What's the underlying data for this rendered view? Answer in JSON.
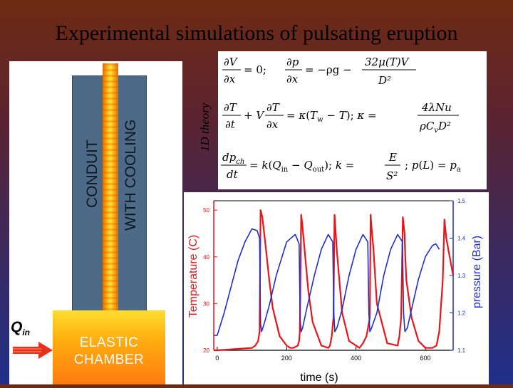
{
  "title": "Experimental simulations of pulsating eruption",
  "diagram": {
    "conduit_label_1": "CONDUIT",
    "conduit_label_2": "WITH COOLING",
    "chamber_label_1": "ELASTIC",
    "chamber_label_2": "CHAMBER",
    "inflow_symbol": "Q",
    "inflow_subscript": "in",
    "theory_label": "1D theory"
  },
  "equations": {
    "eq1_a": "∂V/∂x = 0;",
    "eq1_b": "∂p/∂x = −ρg − 32μ(T)V / D²",
    "eq2": "∂T/∂t + V ∂T/∂x = κ(Tw − T);  κ = 4λNu / (ρCvD²)",
    "eq3": "dp_ch/dt = k(Qin − Qout);  k = E/S²;  p(L) = pa"
  },
  "colors": {
    "temperature": "#e8151b",
    "pressure": "#1d2fcc",
    "tube": "#f5a010",
    "chamber": "#ffae10",
    "conduit_panel": "#4d6a88"
  },
  "chart_data": {
    "type": "line",
    "xlabel": "time (s)",
    "ylabel_left": "Temperature (C)",
    "ylabel_right": "pressure (Bar)",
    "xlim": [
      -10,
      680
    ],
    "ylim_left": [
      20,
      52
    ],
    "ylim_right": [
      1.1,
      1.5
    ],
    "xticks": [
      0,
      200,
      400,
      600
    ],
    "yticks_left": [
      20,
      30,
      40,
      50
    ],
    "yticks_right": [
      1.1,
      1.2,
      1.3,
      1.4,
      1.5
    ],
    "grid": false,
    "series": [
      {
        "axis": "left",
        "color": "#e8151b",
        "x": [
          -10,
          0,
          100,
          110,
          118,
          122,
          125,
          130,
          140,
          150,
          160,
          180,
          200,
          210,
          220,
          232,
          236,
          238,
          242,
          245,
          250,
          262,
          275,
          300,
          320,
          325,
          330,
          335,
          338,
          340,
          345,
          360,
          380,
          410,
          420,
          430,
          440,
          442,
          445,
          450,
          460,
          490,
          520,
          525,
          530,
          535,
          540,
          542,
          545,
          560,
          580,
          600,
          620,
          632,
          640,
          650,
          655,
          660,
          680
        ],
        "y": [
          20,
          20,
          20.5,
          21,
          22,
          24,
          50,
          48.5,
          42,
          35,
          29,
          23,
          21,
          20.5,
          20.5,
          21,
          22,
          24,
          49,
          47,
          43,
          33,
          26,
          21,
          20.5,
          21,
          23,
          27,
          49,
          47,
          41,
          28,
          22,
          20.5,
          21.5,
          23,
          27,
          49,
          46,
          42,
          30,
          21.5,
          21,
          23,
          27,
          48.5,
          45,
          40,
          35,
          27,
          22,
          20.5,
          20.5,
          21,
          24,
          35,
          48,
          44,
          36
        ]
      },
      {
        "axis": "right",
        "color": "#1d2fcc",
        "x": [
          -10,
          0,
          20,
          40,
          60,
          80,
          100,
          115,
          122,
          125,
          128,
          135,
          150,
          170,
          200,
          225,
          236,
          239,
          242,
          246,
          260,
          280,
          300,
          320,
          333,
          336,
          339,
          345,
          360,
          380,
          400,
          420,
          434,
          437,
          440,
          445,
          460,
          480,
          500,
          520,
          534,
          537,
          541,
          548,
          560,
          580,
          600,
          620,
          630,
          640
        ],
        "y": [
          1.14,
          1.14,
          1.2,
          1.27,
          1.34,
          1.39,
          1.425,
          1.42,
          1.4,
          1.17,
          1.15,
          1.17,
          1.22,
          1.3,
          1.39,
          1.41,
          1.385,
          1.18,
          1.15,
          1.16,
          1.22,
          1.3,
          1.37,
          1.41,
          1.39,
          1.2,
          1.15,
          1.16,
          1.21,
          1.3,
          1.37,
          1.41,
          1.39,
          1.2,
          1.15,
          1.16,
          1.2,
          1.3,
          1.37,
          1.41,
          1.39,
          1.2,
          1.15,
          1.16,
          1.21,
          1.29,
          1.35,
          1.38,
          1.385,
          1.37
        ]
      }
    ]
  }
}
